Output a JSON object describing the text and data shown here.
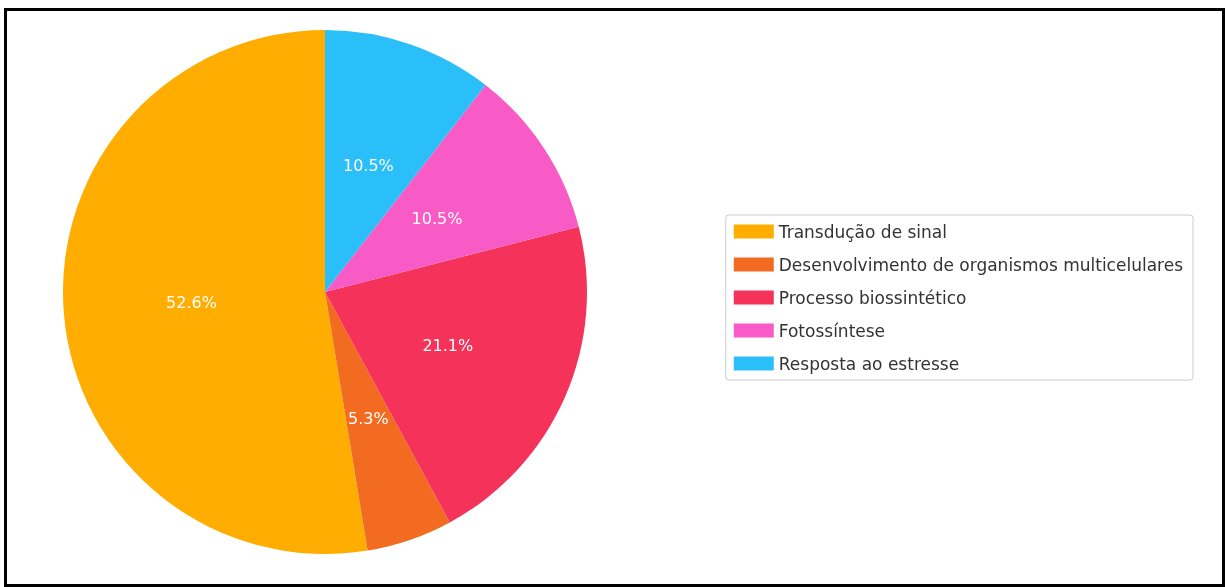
{
  "chart_data": {
    "type": "pie",
    "categories": [
      "Transdução de sinal",
      "Desenvolvimento de organismos multicelulares",
      "Processo biossintético",
      "Fotossíntese",
      "Resposta ao estresse"
    ],
    "values": [
      52.6,
      5.3,
      21.1,
      10.5,
      10.5
    ],
    "colors": [
      "#ffad00",
      "#f26b21",
      "#f5335a",
      "#f95bc6",
      "#2bbff9"
    ],
    "value_labels": [
      "52.6%",
      "5.3%",
      "21.1%",
      "10.5%",
      "10.5%"
    ],
    "legend": "right"
  }
}
